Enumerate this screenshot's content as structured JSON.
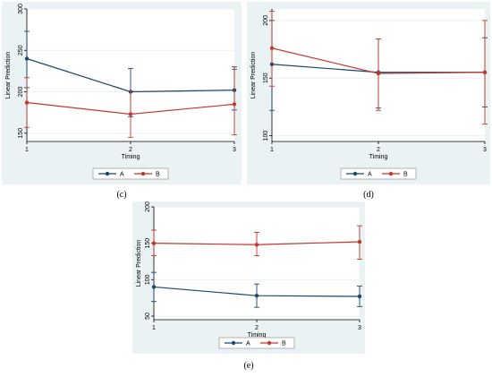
{
  "colors": {
    "A": "#1a476f",
    "B": "#c0392b",
    "panel_bg": "#eaf2f3"
  },
  "charts": [
    {
      "caption": "(c)",
      "chart_data": {
        "type": "line",
        "x": [
          1,
          2,
          3
        ],
        "xlabel": "Timing",
        "ylabel": "Linear Prediction",
        "ylim": [
          140,
          300
        ],
        "yticks": [
          150,
          200,
          250,
          300
        ],
        "xticks": [
          1,
          2,
          3
        ],
        "legend": "bottom",
        "series": [
          {
            "name": "A",
            "values": [
              240,
              200,
              202
            ],
            "ci_low": [
              205,
              170,
              178
            ],
            "ci_high": [
              273,
              228,
              230
            ]
          },
          {
            "name": "B",
            "values": [
              187,
              173,
              185
            ],
            "ci_low": [
              157,
              145,
              148
            ],
            "ci_high": [
              217,
              201,
              227
            ]
          }
        ]
      }
    },
    {
      "caption": "(d)",
      "chart_data": {
        "type": "line",
        "x": [
          1,
          2,
          3
        ],
        "xlabel": "Timing",
        "ylabel": "Linear Prediction",
        "ylim": [
          95,
          210
        ],
        "yticks": [
          100,
          150,
          200
        ],
        "xticks": [
          1,
          2,
          3
        ],
        "legend": "bottom",
        "series": [
          {
            "name": "A",
            "values": [
              162,
              155,
              155
            ],
            "ci_low": [
              122,
              124,
              125
            ],
            "ci_high": [
              200,
              184,
              185
            ]
          },
          {
            "name": "B",
            "values": [
              176,
              154,
              155
            ],
            "ci_low": [
              143,
              122,
              110
            ],
            "ci_high": [
              208,
              184,
              200
            ]
          }
        ]
      }
    },
    {
      "caption": "(e)",
      "chart_data": {
        "type": "line",
        "x": [
          1,
          2,
          3
        ],
        "xlabel": "Timing",
        "ylabel": "Linear Prediction",
        "ylim": [
          45,
          200
        ],
        "yticks": [
          50,
          100,
          150,
          200
        ],
        "xticks": [
          1,
          2,
          3
        ],
        "legend": "bottom",
        "series": [
          {
            "name": "A",
            "values": [
              90,
              78,
              77
            ],
            "ci_low": [
              70,
              62,
              63
            ],
            "ci_high": [
              110,
              94,
              91
            ]
          },
          {
            "name": "B",
            "values": [
              150,
              148,
              152
            ],
            "ci_low": [
              133,
              133,
              128
            ],
            "ci_high": [
              168,
              165,
              174
            ]
          }
        ]
      }
    }
  ]
}
